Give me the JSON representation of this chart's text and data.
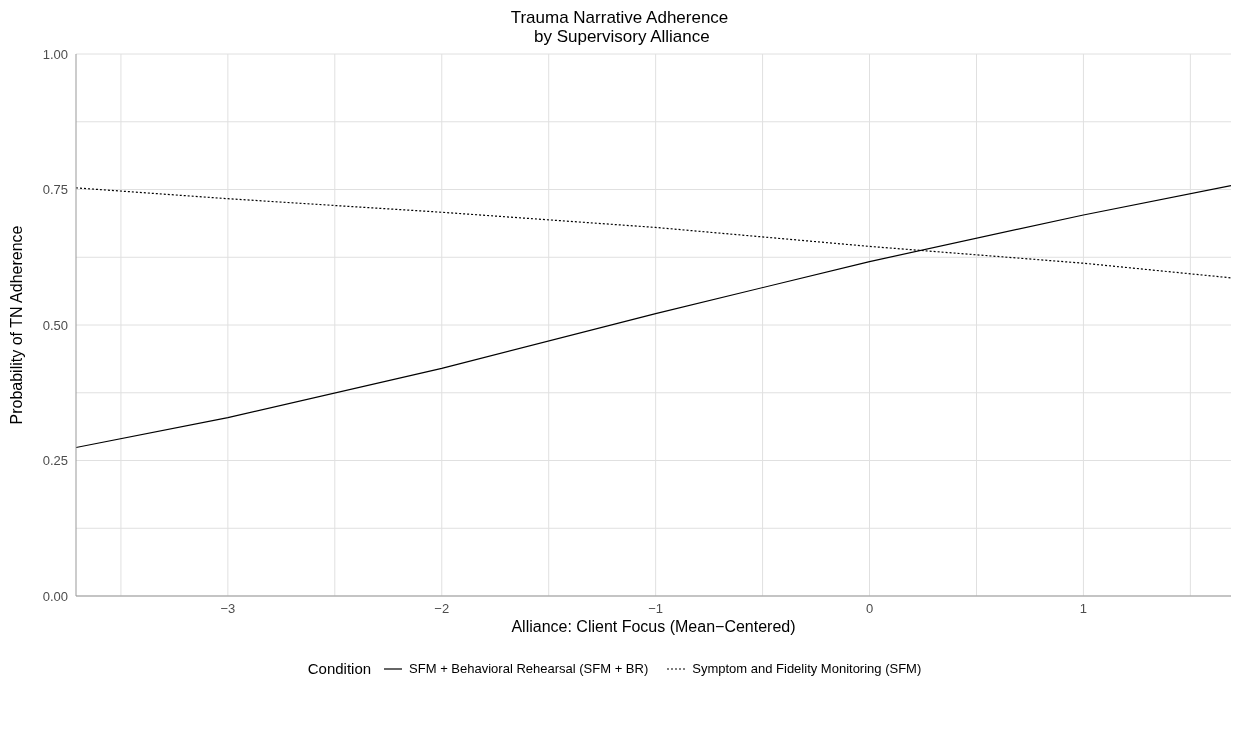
{
  "chart_data": {
    "type": "line",
    "title": "Trauma Narrative Adherence\n by Supervisory Alliance",
    "xlabel": "Alliance: Client Focus (Mean−Centered)",
    "ylabel": "Probability of TN Adherence",
    "legend_title": "Condition",
    "x": [
      -3.71,
      -3,
      -2,
      -1,
      0,
      1,
      1.69
    ],
    "series": [
      {
        "name": "SFM + Behavioral Rehearsal (SFM + BR)",
        "color": "#000000",
        "line_style": "solid",
        "values": [
          0.274,
          0.329,
          0.42,
          0.521,
          0.617,
          0.703,
          0.757
        ]
      },
      {
        "name": "Symptom and Fidelity Monitoring (SFM)",
        "color": "#000000",
        "line_style": "dotted",
        "values": [
          0.753,
          0.733,
          0.708,
          0.68,
          0.645,
          0.614,
          0.587
        ]
      }
    ],
    "xlim": [
      -3.71,
      1.69
    ],
    "xticks": [
      {
        "value": -3.5,
        "label": null
      },
      {
        "value": -3,
        "label": "−3"
      },
      {
        "value": -2.5,
        "label": null
      },
      {
        "value": -2,
        "label": "−2"
      },
      {
        "value": -1.5,
        "label": null
      },
      {
        "value": -1,
        "label": "−1"
      },
      {
        "value": -0.5,
        "label": null
      },
      0,
      {
        "value": 0.5,
        "label": null
      },
      1,
      {
        "value": 1.5,
        "label": null
      }
    ],
    "ylim": [
      0,
      1
    ],
    "yticks": [
      {
        "value": 0,
        "label": "0.00"
      },
      {
        "value": 0.125,
        "label": null
      },
      {
        "value": 0.25,
        "label": "0.25"
      },
      {
        "value": 0.375,
        "label": null
      },
      {
        "value": 0.5,
        "label": "0.50"
      },
      {
        "value": 0.625,
        "label": null
      },
      {
        "value": 0.75,
        "label": "0.75"
      },
      {
        "value": 0.875,
        "label": null
      },
      {
        "value": 1,
        "label": "1.00"
      }
    ],
    "grid": true,
    "legend": "bottom",
    "marker": "none"
  }
}
